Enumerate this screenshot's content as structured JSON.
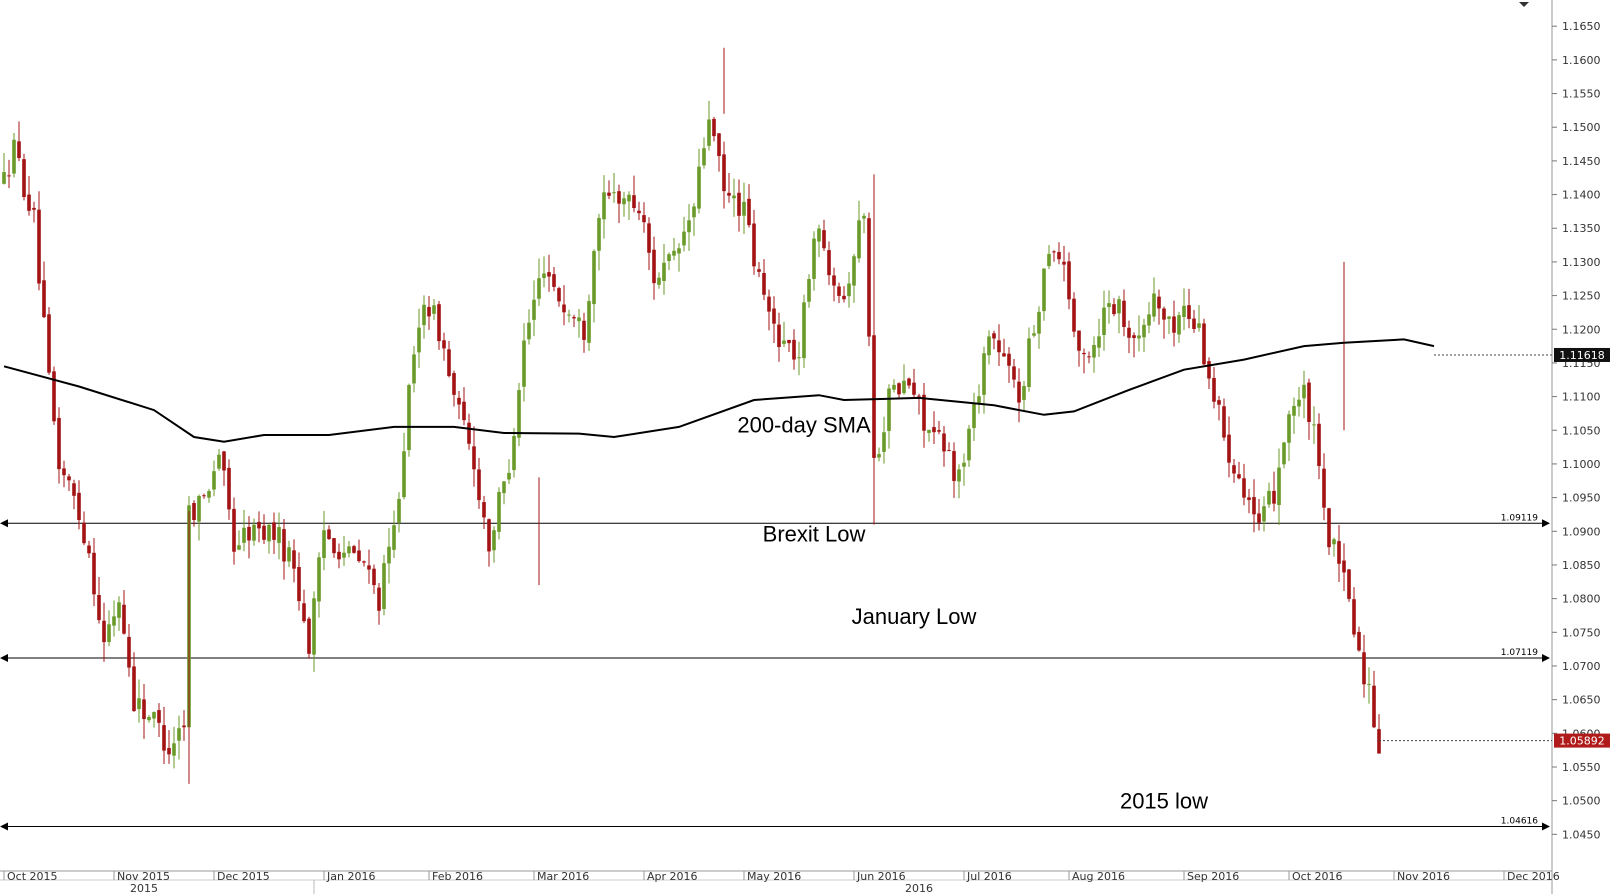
{
  "chart_data": {
    "type": "candlestick",
    "colors": {
      "up": "#6a9a2a",
      "down": "#a31313",
      "sma": "#000000",
      "grid": "#e6e6e6",
      "badge_dark": "#111111",
      "badge_red": "#b11a1a"
    },
    "y_axis": {
      "min": 1.04,
      "max": 1.168,
      "ticks": [
        "1.0450",
        "1.0500",
        "1.0550",
        "1.0600",
        "1.0650",
        "1.0700",
        "1.0750",
        "1.0800",
        "1.0850",
        "1.0900",
        "1.0950",
        "1.1000",
        "1.1050",
        "1.1100",
        "1.1150",
        "1.1200",
        "1.1250",
        "1.1300",
        "1.1350",
        "1.1400",
        "1.1450",
        "1.1500",
        "1.1550",
        "1.1600",
        "1.1650"
      ]
    },
    "x_axis": {
      "months": [
        {
          "label": "Oct 2015",
          "index": 0
        },
        {
          "label": "Nov 2015",
          "index": 22
        },
        {
          "label": "Dec 2015",
          "index": 42
        },
        {
          "label": "Jan 2016",
          "index": 64
        },
        {
          "label": "Feb 2016",
          "index": 85
        },
        {
          "label": "Mar 2016",
          "index": 106
        },
        {
          "label": "Apr 2016",
          "index": 128
        },
        {
          "label": "May 2016",
          "index": 148
        },
        {
          "label": "Jun 2016",
          "index": 170
        },
        {
          "label": "Jul 2016",
          "index": 192
        },
        {
          "label": "Aug 2016",
          "index": 213
        },
        {
          "label": "Sep 2016",
          "index": 236
        },
        {
          "label": "Oct 2016",
          "index": 257
        },
        {
          "label": "Nov 2016",
          "index": 278
        },
        {
          "label": "Dec 2016",
          "index": 300
        }
      ],
      "years": [
        {
          "label": "2015",
          "index": 28
        },
        {
          "label": "2016",
          "index": 183
        }
      ],
      "total_bars": 310
    },
    "levels": [
      {
        "name": "Brexit Low",
        "value": 1.09119,
        "label": "1.09119"
      },
      {
        "name": "January Low",
        "value": 1.07119,
        "label": "1.07119"
      },
      {
        "name": "2015 low",
        "value": 1.04616,
        "label": "1.04616"
      }
    ],
    "annotations": [
      {
        "text": "200-day SMA",
        "x_index": 160,
        "y": 1.1047
      },
      {
        "text": "Brexit Low",
        "x_index": 162,
        "y": 1.0885
      },
      {
        "text": "January Low",
        "x_index": 182,
        "y": 1.0762
      },
      {
        "text": "2015 low",
        "x_index": 232,
        "y": 1.0488
      }
    ],
    "price_badges": [
      {
        "label": "1.11618",
        "value": 1.11618,
        "style": "dark"
      },
      {
        "label": "1.05892",
        "value": 1.05892,
        "style": "red"
      }
    ],
    "sma": [
      [
        0,
        1.1145
      ],
      [
        15,
        1.1115
      ],
      [
        30,
        1.108
      ],
      [
        38,
        1.104
      ],
      [
        44,
        1.1033
      ],
      [
        52,
        1.1043
      ],
      [
        65,
        1.1043
      ],
      [
        78,
        1.1055
      ],
      [
        90,
        1.1055
      ],
      [
        100,
        1.1046
      ],
      [
        115,
        1.1045
      ],
      [
        122,
        1.104
      ],
      [
        135,
        1.1055
      ],
      [
        150,
        1.1095
      ],
      [
        163,
        1.1102
      ],
      [
        168,
        1.1095
      ],
      [
        183,
        1.1098
      ],
      [
        198,
        1.1087
      ],
      [
        208,
        1.1073
      ],
      [
        214,
        1.1078
      ],
      [
        225,
        1.111
      ],
      [
        236,
        1.114
      ],
      [
        248,
        1.1155
      ],
      [
        260,
        1.1175
      ],
      [
        268,
        1.118
      ],
      [
        280,
        1.1185
      ],
      [
        286,
        1.1175
      ]
    ],
    "anchors": [
      [
        0,
        1.142
      ],
      [
        2,
        1.147
      ],
      [
        6,
        1.136
      ],
      [
        9,
        1.112
      ],
      [
        11,
        1.1
      ],
      [
        14,
        1.095
      ],
      [
        17,
        1.087
      ],
      [
        20,
        1.073
      ],
      [
        23,
        1.08
      ],
      [
        26,
        1.065
      ],
      [
        30,
        1.062
      ],
      [
        33,
        1.058
      ],
      [
        36,
        1.062
      ],
      [
        37,
        1.093
      ],
      [
        40,
        1.095
      ],
      [
        43,
        1.102
      ],
      [
        46,
        1.088
      ],
      [
        49,
        1.09
      ],
      [
        54,
        1.09
      ],
      [
        58,
        1.085
      ],
      [
        61,
        1.073
      ],
      [
        64,
        1.09
      ],
      [
        68,
        1.087
      ],
      [
        72,
        1.085
      ],
      [
        75,
        1.08
      ],
      [
        78,
        1.09
      ],
      [
        81,
        1.11
      ],
      [
        84,
        1.125
      ],
      [
        87,
        1.12
      ],
      [
        90,
        1.11
      ],
      [
        94,
        1.1
      ],
      [
        97,
        1.088
      ],
      [
        101,
        1.1
      ],
      [
        104,
        1.118
      ],
      [
        108,
        1.13
      ],
      [
        112,
        1.123
      ],
      [
        116,
        1.12
      ],
      [
        119,
        1.138
      ],
      [
        123,
        1.14
      ],
      [
        127,
        1.138
      ],
      [
        130,
        1.128
      ],
      [
        134,
        1.13
      ],
      [
        138,
        1.138
      ],
      [
        141,
        1.152
      ],
      [
        144,
        1.14
      ],
      [
        148,
        1.138
      ],
      [
        150,
        1.13
      ],
      [
        153,
        1.122
      ],
      [
        156,
        1.118
      ],
      [
        159,
        1.116
      ],
      [
        162,
        1.135
      ],
      [
        165,
        1.13
      ],
      [
        168,
        1.125
      ],
      [
        172,
        1.138
      ],
      [
        174,
        1.1
      ],
      [
        177,
        1.11
      ],
      [
        181,
        1.112
      ],
      [
        185,
        1.105
      ],
      [
        188,
        1.102
      ],
      [
        191,
        1.098
      ],
      [
        194,
        1.108
      ],
      [
        197,
        1.12
      ],
      [
        200,
        1.115
      ],
      [
        203,
        1.11
      ],
      [
        206,
        1.12
      ],
      [
        209,
        1.133
      ],
      [
        212,
        1.13
      ],
      [
        215,
        1.115
      ],
      [
        218,
        1.118
      ],
      [
        221,
        1.125
      ],
      [
        224,
        1.122
      ],
      [
        227,
        1.118
      ],
      [
        230,
        1.125
      ],
      [
        233,
        1.12
      ],
      [
        236,
        1.123
      ],
      [
        239,
        1.12
      ],
      [
        242,
        1.11
      ],
      [
        245,
        1.102
      ],
      [
        248,
        1.097
      ],
      [
        251,
        1.09
      ],
      [
        254,
        1.096
      ],
      [
        257,
        1.108
      ],
      [
        260,
        1.11
      ],
      [
        262,
        1.104
      ],
      [
        264,
        1.092
      ],
      [
        266,
        1.087
      ],
      [
        269,
        1.08
      ],
      [
        271,
        1.072
      ],
      [
        273,
        1.066
      ],
      [
        275,
        1.0589
      ]
    ]
  }
}
